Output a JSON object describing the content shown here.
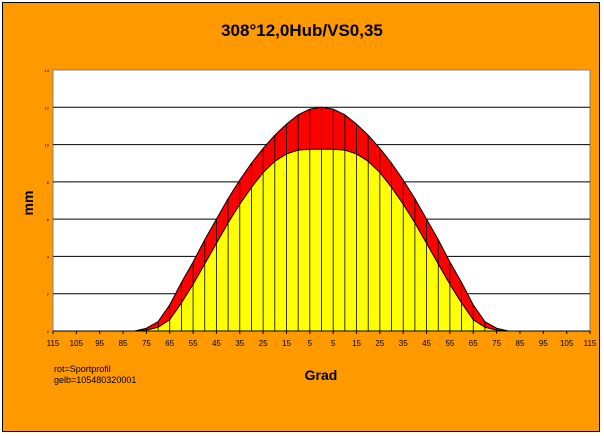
{
  "chart_data": {
    "type": "area",
    "title": "308°12,0Hub/VS0,35",
    "xlabel": "Grad",
    "ylabel": "mm",
    "x_ticks": [
      "115",
      "105",
      "95",
      "85",
      "75",
      "65",
      "55",
      "45",
      "35",
      "25",
      "15",
      "5",
      "5",
      "15",
      "25",
      "35",
      "45",
      "55",
      "65",
      "75",
      "85",
      "95",
      "105",
      "115"
    ],
    "y_ticks": [
      "0",
      "2",
      "4",
      "6",
      "8",
      "10",
      "12",
      "14"
    ],
    "ylim": [
      0,
      14
    ],
    "xlim": [
      -115,
      115
    ],
    "grid": "horizontal",
    "x": [
      -115,
      -105,
      -95,
      -85,
      -80,
      -75,
      -70,
      -65,
      -60,
      -55,
      -50,
      -45,
      -40,
      -35,
      -30,
      -25,
      -20,
      -15,
      -10,
      -5,
      0,
      5,
      10,
      15,
      20,
      25,
      30,
      35,
      40,
      45,
      50,
      55,
      60,
      65,
      70,
      75,
      80,
      85,
      95,
      105,
      115
    ],
    "series": [
      {
        "name": "rot=Sportprofil",
        "color": "#ff0000",
        "values": [
          0,
          0,
          0,
          0,
          0,
          0.15,
          0.5,
          1.4,
          2.6,
          3.7,
          4.9,
          6.0,
          7.1,
          8.1,
          9.0,
          9.8,
          10.5,
          11.1,
          11.6,
          11.9,
          12.0,
          11.9,
          11.6,
          11.1,
          10.5,
          9.8,
          9.0,
          8.1,
          7.1,
          6.0,
          4.9,
          3.7,
          2.6,
          1.4,
          0.5,
          0.15,
          0,
          0,
          0,
          0,
          0
        ]
      },
      {
        "name": "gelb=105480320001",
        "color": "#ffff00",
        "values": [
          0,
          0,
          0,
          0,
          0,
          0.05,
          0.2,
          0.6,
          1.5,
          2.5,
          3.6,
          4.7,
          5.8,
          6.8,
          7.7,
          8.5,
          9.1,
          9.5,
          9.7,
          9.75,
          9.75,
          9.75,
          9.7,
          9.5,
          9.1,
          8.5,
          7.7,
          6.8,
          5.8,
          4.7,
          3.6,
          2.5,
          1.5,
          0.6,
          0.2,
          0.05,
          0,
          0,
          0,
          0,
          0
        ]
      }
    ],
    "legend_position": "bottom-left",
    "colors": {
      "background": "#ff9900",
      "plot_area": "#ffffff",
      "grid": "#000000"
    }
  }
}
